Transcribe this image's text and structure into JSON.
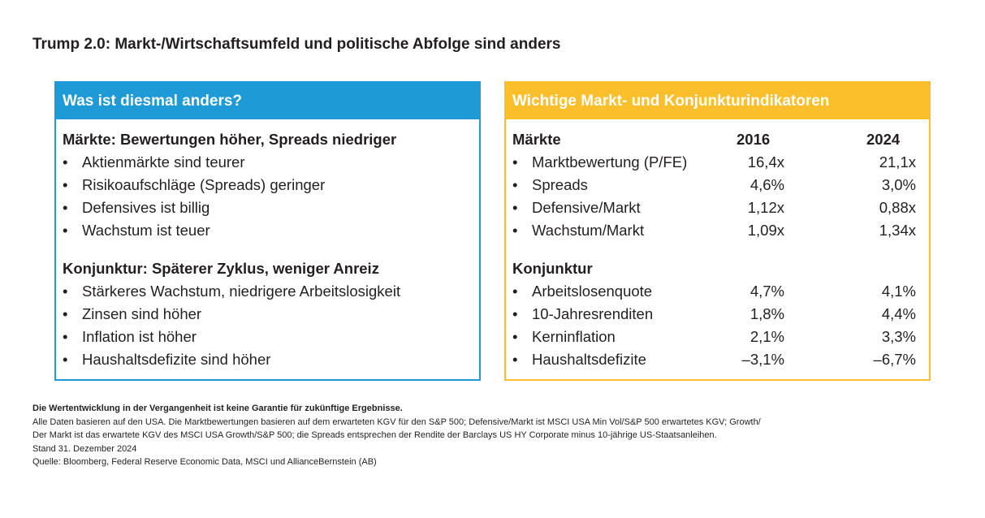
{
  "title": "Trump 2.0: Markt-/Wirtschaftsumfeld und politische Abfolge sind anders",
  "colors": {
    "blue": "#1e9ad6",
    "yellow": "#fbbf2b"
  },
  "left": {
    "header": "Was ist diesmal anders?",
    "sections": [
      {
        "title": "Märkte: Bewertungen höher, Spreads niedriger",
        "items": [
          "Aktienmärkte sind teurer",
          "Risikoaufschläge (Spreads) geringer",
          "Defensives ist billig",
          "Wachstum ist teuer"
        ]
      },
      {
        "title": "Konjunktur: Späterer Zyklus, weniger Anreiz",
        "items": [
          "Stärkeres Wachstum, niedrigere Arbeitslosigkeit",
          "Zinsen sind höher",
          "Inflation ist höher",
          "Haushaltsdefizite sind höher"
        ]
      }
    ]
  },
  "right": {
    "header": "Wichtige Markt- und Konjunkturindikatoren",
    "col1": "2016",
    "col2": "2024",
    "sections": [
      {
        "title": "Märkte",
        "items": [
          {
            "label": "Marktbewertung (P/FE)",
            "v2016": "16,4x",
            "v2024": "21,1x"
          },
          {
            "label": "Spreads",
            "v2016": "4,6%",
            "v2024": "3,0%"
          },
          {
            "label": "Defensive/Markt",
            "v2016": "1,12x",
            "v2024": "0,88x"
          },
          {
            "label": "Wachstum/Markt",
            "v2016": "1,09x",
            "v2024": "1,34x"
          }
        ]
      },
      {
        "title": "Konjunktur",
        "items": [
          {
            "label": "Arbeitslosenquote",
            "v2016": "4,7%",
            "v2024": "4,1%"
          },
          {
            "label": "10-Jahresrenditen",
            "v2016": "1,8%",
            "v2024": "4,4%"
          },
          {
            "label": "Kerninflation",
            "v2016": "2,1%",
            "v2024": "3,3%"
          },
          {
            "label": "Haushaltsdefizite",
            "v2016": "–3,1%",
            "v2024": "–6,7%"
          }
        ]
      }
    ]
  },
  "footer": {
    "disclaimer": "Die Wertentwicklung in der Vergangenheit ist keine Garantie für zukünftige Ergebnisse.",
    "lines": [
      "Alle Daten basieren auf den USA. Die Marktbewertungen basieren auf dem erwarteten KGV für den S&P 500; Defensive/Markt ist MSCI USA Min Vol/S&P 500 erwartetes KGV; Growth/",
      "Der Markt ist das erwartete KGV des MSCI USA Growth/S&P 500; die Spreads entsprechen der Rendite der Barclays US HY Corporate minus 10-jährige US-Staatsanleihen.",
      "Stand 31. Dezember 2024",
      "Quelle: Bloomberg, Federal Reserve Economic Data, MSCI und AllianceBernstein (AB)"
    ]
  }
}
